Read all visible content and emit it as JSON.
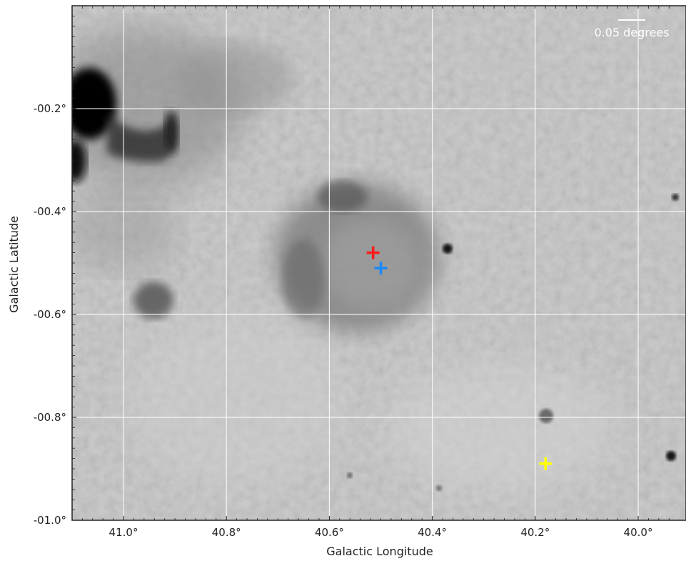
{
  "axes": {
    "xlabel": "Galactic Longitude",
    "ylabel": "Galactic Latitude",
    "x_range_deg": [
      41.1,
      39.92
    ],
    "y_range_deg": [
      -1.0,
      -0.0
    ],
    "x_ticks": [
      {
        "value": 41.0,
        "label": "41.0°"
      },
      {
        "value": 40.8,
        "label": "40.8°"
      },
      {
        "value": 40.6,
        "label": "40.6°"
      },
      {
        "value": 40.4,
        "label": "40.4°"
      },
      {
        "value": 40.2,
        "label": "40.2°"
      },
      {
        "value": 40.0,
        "label": "40.0°"
      }
    ],
    "y_ticks": [
      {
        "value": -0.2,
        "label": "-00.2°"
      },
      {
        "value": -0.4,
        "label": "-00.4°"
      },
      {
        "value": -0.6,
        "label": "-00.6°"
      },
      {
        "value": -0.8,
        "label": "-00.8°"
      },
      {
        "value": -1.0,
        "label": "-01.0°"
      }
    ],
    "grid": true
  },
  "scale_bar": {
    "label": "0.05 degrees",
    "length_deg": 0.05
  },
  "markers": [
    {
      "l": 40.515,
      "b": -0.48,
      "color": "#ff1a1a",
      "shape": "plus"
    },
    {
      "l": 40.5,
      "b": -0.51,
      "color": "#1a88ff",
      "shape": "plus"
    },
    {
      "l": 40.18,
      "b": -0.89,
      "color": "#ffff00",
      "shape": "plus"
    }
  ],
  "colors": {
    "grid": "#ffffff",
    "background_map": "grayscale"
  }
}
